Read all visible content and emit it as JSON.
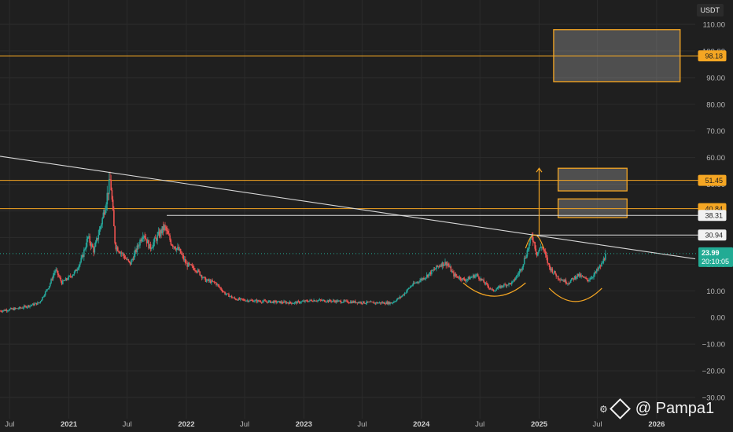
{
  "currency_badge": "USDT",
  "watermark": {
    "text": "@ Pampa1",
    "icon": "exchange-logo-icon",
    "badge_icon": "grid-dots-icon"
  },
  "colors": {
    "background": "#1f1f1f",
    "grid": "#2c2c2c",
    "candle_up": "#26a69a",
    "candle_down": "#ef5350",
    "orange": "#f5a623",
    "trendline": "#d8d8d8",
    "last_price": "#22ab94"
  },
  "chart_data": {
    "type": "candlestick",
    "y_unit": "USDT",
    "ylim": [
      -35,
      115
    ],
    "y_ticks": [
      110,
      100,
      90,
      80,
      70,
      60,
      50,
      40,
      30,
      20,
      10,
      0,
      -10,
      -20,
      -30
    ],
    "y_tick_labels": [
      "110.00",
      "100.00",
      "90.00",
      "80.00",
      "70.00",
      "60.00",
      "50.00",
      "40.00",
      "30.00",
      "20.00",
      "10.00",
      "0.00",
      "−10.00",
      "−20.00",
      "−30.00"
    ],
    "x_range": [
      "2020-06-01",
      "2026-05-01"
    ],
    "x_ticks": [
      {
        "date": "2020-07-01",
        "label": "Jul",
        "bold": false
      },
      {
        "date": "2021-01-01",
        "label": "2021",
        "bold": true
      },
      {
        "date": "2021-07-01",
        "label": "Jul",
        "bold": false
      },
      {
        "date": "2022-01-01",
        "label": "2022",
        "bold": true
      },
      {
        "date": "2022-07-01",
        "label": "Jul",
        "bold": false
      },
      {
        "date": "2023-01-01",
        "label": "2023",
        "bold": true
      },
      {
        "date": "2023-07-01",
        "label": "Jul",
        "bold": false
      },
      {
        "date": "2024-01-01",
        "label": "2024",
        "bold": true
      },
      {
        "date": "2024-07-01",
        "label": "Jul",
        "bold": false
      },
      {
        "date": "2025-01-01",
        "label": "2025",
        "bold": true
      },
      {
        "date": "2025-07-01",
        "label": "Jul",
        "bold": false
      },
      {
        "date": "2026-01-01",
        "label": "2026",
        "bold": true
      }
    ],
    "price_path": [
      [
        "2020-06-01",
        2.5
      ],
      [
        "2020-08-01",
        3.5
      ],
      [
        "2020-09-01",
        4.5
      ],
      [
        "2020-10-01",
        5.5
      ],
      [
        "2020-11-01",
        12
      ],
      [
        "2020-11-20",
        18
      ],
      [
        "2020-12-10",
        13
      ],
      [
        "2021-01-01",
        15
      ],
      [
        "2021-01-20",
        17
      ],
      [
        "2021-02-10",
        22
      ],
      [
        "2021-03-01",
        30
      ],
      [
        "2021-03-20",
        25
      ],
      [
        "2021-04-15",
        37
      ],
      [
        "2021-05-10",
        52
      ],
      [
        "2021-05-25",
        27
      ],
      [
        "2021-06-15",
        24
      ],
      [
        "2021-07-10",
        20
      ],
      [
        "2021-08-01",
        26
      ],
      [
        "2021-08-20",
        32
      ],
      [
        "2021-09-10",
        26
      ],
      [
        "2021-10-01",
        30
      ],
      [
        "2021-10-25",
        34
      ],
      [
        "2021-11-15",
        28
      ],
      [
        "2021-12-10",
        25
      ],
      [
        "2022-01-01",
        20
      ],
      [
        "2022-02-01",
        18
      ],
      [
        "2022-03-01",
        14
      ],
      [
        "2022-04-01",
        13
      ],
      [
        "2022-05-01",
        9
      ],
      [
        "2022-06-01",
        7
      ],
      [
        "2022-07-01",
        6.5
      ],
      [
        "2022-09-01",
        6
      ],
      [
        "2022-12-01",
        5.5
      ],
      [
        "2023-02-01",
        6.5
      ],
      [
        "2023-05-01",
        6
      ],
      [
        "2023-08-01",
        5.5
      ],
      [
        "2023-10-01",
        5.5
      ],
      [
        "2023-11-01",
        8
      ],
      [
        "2023-12-01",
        12
      ],
      [
        "2024-01-10",
        15
      ],
      [
        "2024-02-01",
        17
      ],
      [
        "2024-03-01",
        20
      ],
      [
        "2024-03-20",
        20.5
      ],
      [
        "2024-04-10",
        16
      ],
      [
        "2024-05-15",
        14
      ],
      [
        "2024-06-20",
        16
      ],
      [
        "2024-07-15",
        13
      ],
      [
        "2024-08-10",
        10
      ],
      [
        "2024-09-10",
        12
      ],
      [
        "2024-10-10",
        13
      ],
      [
        "2024-11-05",
        18
      ],
      [
        "2024-11-25",
        25
      ],
      [
        "2024-12-10",
        30.9
      ],
      [
        "2024-12-25",
        24
      ],
      [
        "2025-01-10",
        27
      ],
      [
        "2025-02-01",
        19
      ],
      [
        "2025-03-01",
        15
      ],
      [
        "2025-04-01",
        13
      ],
      [
        "2025-05-01",
        16
      ],
      [
        "2025-06-01",
        14
      ],
      [
        "2025-06-20",
        16
      ],
      [
        "2025-07-15",
        20
      ],
      [
        "2025-07-28",
        23.99
      ]
    ],
    "last_price": {
      "value": 23.99,
      "label": "23.99",
      "countdown": "20:10:05"
    },
    "horizontal_levels": [
      {
        "name": "level-98-18",
        "value": 98.18,
        "label": "98.18",
        "color": "#f5a623",
        "from": "2020-06-01",
        "full": true
      },
      {
        "name": "level-51-45",
        "value": 51.45,
        "label": "51.45",
        "color": "#f5a623",
        "from": "2020-06-01",
        "full": true
      },
      {
        "name": "level-40-84",
        "value": 40.84,
        "label": "40.84",
        "color": "#f5a623",
        "from": "2020-06-01",
        "full": true
      },
      {
        "name": "level-38-31",
        "value": 38.31,
        "label": "38.31",
        "color": "#d8d8d8",
        "from": "2021-11-01",
        "full": false
      },
      {
        "name": "level-30-94",
        "value": 30.94,
        "label": "30.94",
        "color": "#d8d8d8",
        "from": "2024-12-10",
        "full": false
      }
    ],
    "trendline": {
      "from": [
        "2020-06-01",
        60.5
      ],
      "to": [
        "2026-05-01",
        22
      ]
    },
    "target_boxes": [
      {
        "name": "target-box-top",
        "x0": "2025-02-15",
        "x1": "2026-03-15",
        "y0": 88.5,
        "y1": 108
      },
      {
        "name": "target-box-mid",
        "x0": "2025-03-01",
        "x1": "2025-10-01",
        "y0": 47.5,
        "y1": 56
      },
      {
        "name": "target-box-low",
        "x0": "2025-03-01",
        "x1": "2025-10-01",
        "y0": 37.5,
        "y1": 44.5
      }
    ],
    "projection_arrow": {
      "x": "2025-01-01",
      "y0": 30.9,
      "y1": 56
    },
    "arcs": [
      {
        "name": "cup-arc-2024",
        "x0": "2024-05-10",
        "x1": "2024-11-20",
        "y_top": 13,
        "y_bottom": 8
      },
      {
        "name": "cup-arc-2025",
        "x0": "2025-02-01",
        "x1": "2025-07-15",
        "y_top": 11,
        "y_bottom": 6
      },
      {
        "name": "handle-arc-peak",
        "x0": "2024-11-20",
        "x1": "2025-01-15",
        "y_top": 26,
        "y_bottom": 31
      }
    ]
  }
}
